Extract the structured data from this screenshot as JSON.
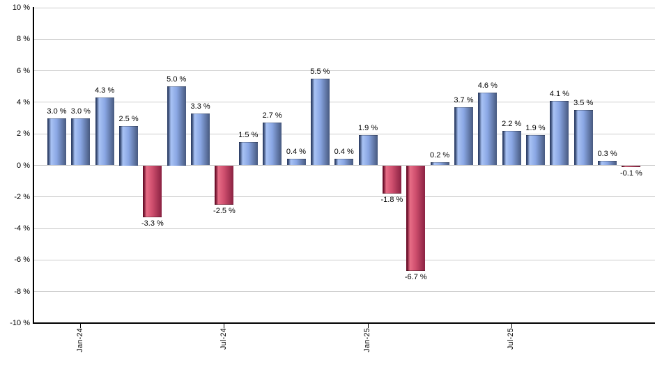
{
  "chart_data": {
    "type": "bar",
    "title": "",
    "values": [
      3.0,
      3.0,
      4.3,
      2.5,
      -3.3,
      5.0,
      3.3,
      -2.5,
      1.5,
      2.7,
      0.4,
      5.5,
      0.4,
      1.9,
      -1.8,
      -6.7,
      0.2,
      3.7,
      4.6,
      2.2,
      1.9,
      4.1,
      3.5,
      0.3,
      -0.1
    ],
    "bar_labels": [
      "3.0 %",
      "3.0 %",
      "4.3 %",
      "2.5 %",
      "-3.3 %",
      "5.0 %",
      "3.3 %",
      "-2.5 %",
      "1.5 %",
      "2.7 %",
      "0.4 %",
      "5.5 %",
      "0.4 %",
      "1.9 %",
      "-1.8 %",
      "-6.7 %",
      "0.2 %",
      "3.7 %",
      "4.6 %",
      "2.2 %",
      "1.9 %",
      "4.1 %",
      "3.5 %",
      "0.3 %",
      "-0.1 %"
    ],
    "y_axis": {
      "ylim": [
        -10,
        10
      ],
      "tick_step": 2,
      "ticks": [
        {
          "value": 10,
          "label": "10 %"
        },
        {
          "value": 8,
          "label": "8 %"
        },
        {
          "value": 6,
          "label": "6 %"
        },
        {
          "value": 4,
          "label": "4 %"
        },
        {
          "value": 2,
          "label": "2 %"
        },
        {
          "value": 0,
          "label": "0 %"
        },
        {
          "value": -2,
          "label": "-2 %"
        },
        {
          "value": -4,
          "label": "-4 %"
        },
        {
          "value": -6,
          "label": "-6 %"
        },
        {
          "value": -8,
          "label": "-8 %"
        },
        {
          "value": -10,
          "label": "-10 %"
        }
      ]
    },
    "x_axis": {
      "ticks": [
        {
          "bar_index": 1,
          "label": "Jan-24"
        },
        {
          "bar_index": 7,
          "label": "Jul-24"
        },
        {
          "bar_index": 13,
          "label": "Jan-25"
        },
        {
          "bar_index": 19,
          "label": "Jul-25"
        }
      ]
    },
    "grid": true,
    "legend_position": "none",
    "colors": {
      "positive_bar_edge": "#31436b",
      "positive_bar_light": "#a9c3f5",
      "positive_bar_mid": "#8aa7e4",
      "positive_bar_dark": "#47597f",
      "negative_bar_edge": "#6b0f2a",
      "negative_bar_light": "#e76d86",
      "negative_bar_mid": "#cf4f6e",
      "negative_bar_dark": "#8a2242",
      "gridline": "#cccccc",
      "axis": "#000000",
      "label_text": "#000000",
      "background": "#ffffff"
    }
  }
}
